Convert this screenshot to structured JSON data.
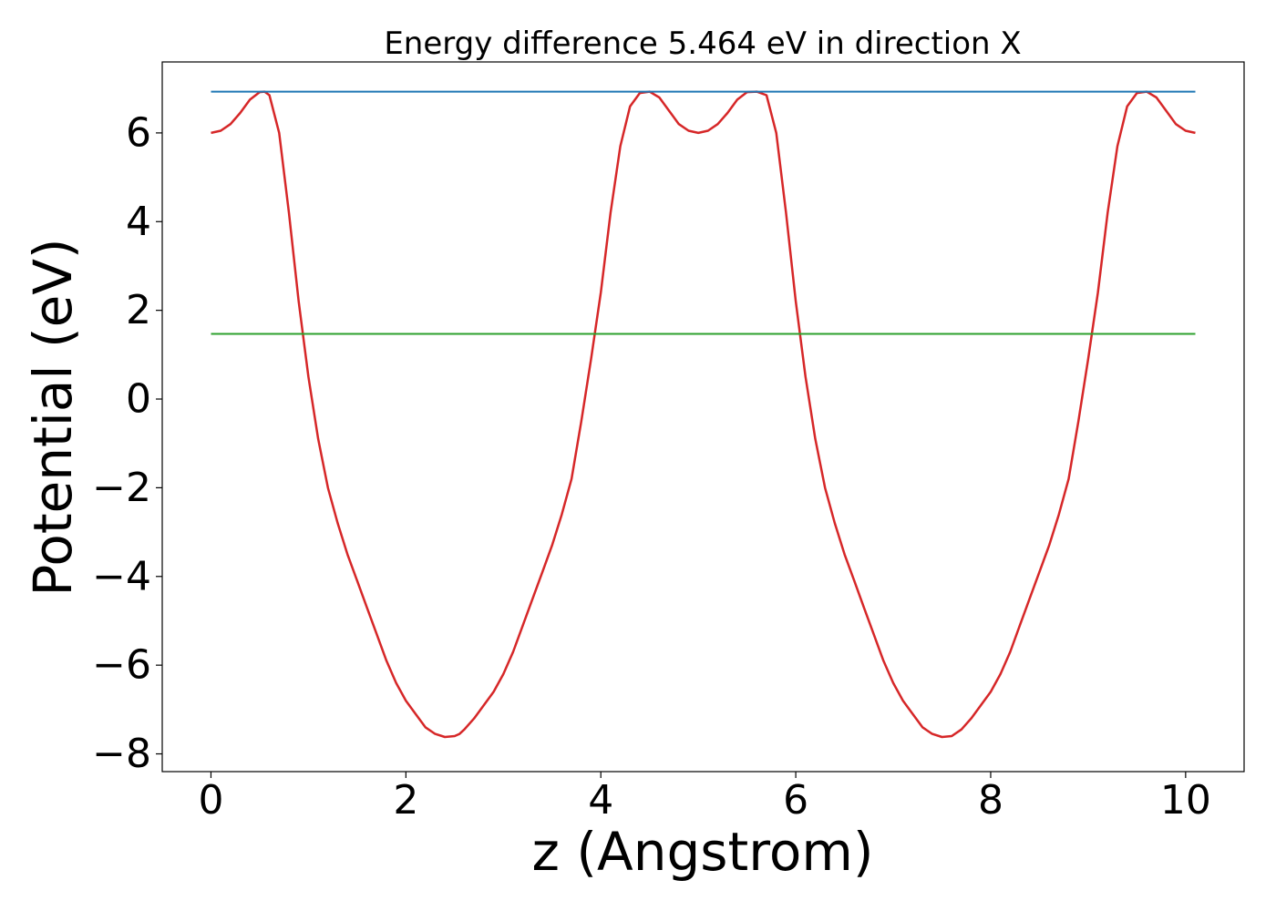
{
  "chart_data": {
    "type": "line",
    "title": "Energy difference 5.464 eV in direction X",
    "xlabel": "z (Angstrom)",
    "ylabel": "Potential (eV)",
    "xlim": [
      -0.5,
      10.6
    ],
    "ylim": [
      -8.4,
      7.6
    ],
    "xticks": [
      0,
      2,
      4,
      6,
      8,
      10
    ],
    "yticks": [
      -8,
      -6,
      -4,
      -2,
      0,
      2,
      4,
      6
    ],
    "xtick_labels": [
      "0",
      "2",
      "4",
      "6",
      "8",
      "10"
    ],
    "ytick_labels": [
      "−8",
      "−6",
      "−4",
      "−2",
      "0",
      "2",
      "4",
      "6"
    ],
    "grid": false,
    "legend": "none",
    "series": [
      {
        "color": "#d62728",
        "x": [
          0,
          0.1,
          0.2,
          0.3,
          0.4,
          0.5,
          0.55,
          0.6,
          0.7,
          0.8,
          0.9,
          1.0,
          1.1,
          1.2,
          1.3,
          1.4,
          1.5,
          1.6,
          1.7,
          1.8,
          1.9,
          2.0,
          2.1,
          2.2,
          2.3,
          2.4,
          2.5,
          2.55,
          2.6,
          2.7,
          2.8,
          2.9,
          3.0,
          3.1,
          3.2,
          3.3,
          3.4,
          3.5,
          3.6,
          3.7,
          3.8,
          3.9,
          4.0,
          4.1,
          4.2,
          4.3,
          4.4,
          4.5,
          4.6,
          4.7,
          4.8,
          4.9,
          5.0,
          5.1,
          5.2,
          5.3,
          5.4,
          5.5,
          5.6,
          5.7,
          5.8,
          5.9,
          6.0,
          6.1,
          6.2,
          6.3,
          6.4,
          6.5,
          6.6,
          6.7,
          6.8,
          6.9,
          7.0,
          7.1,
          7.2,
          7.3,
          7.4,
          7.5,
          7.6,
          7.7,
          7.8,
          7.9,
          8.0,
          8.1,
          8.2,
          8.3,
          8.4,
          8.5,
          8.6,
          8.7,
          8.8,
          8.9,
          9.0,
          9.1,
          9.2,
          9.3,
          9.4,
          9.5,
          9.6,
          9.7,
          9.8,
          9.9,
          10.0,
          10.1
        ],
        "y": [
          6.0,
          6.05,
          6.2,
          6.45,
          6.75,
          6.92,
          6.93,
          6.85,
          6.0,
          4.2,
          2.2,
          0.5,
          -0.9,
          -2.0,
          -2.8,
          -3.5,
          -4.1,
          -4.7,
          -5.3,
          -5.9,
          -6.4,
          -6.8,
          -7.1,
          -7.4,
          -7.55,
          -7.62,
          -7.6,
          -7.55,
          -7.45,
          -7.2,
          -6.9,
          -6.6,
          -6.2,
          -5.7,
          -5.1,
          -4.5,
          -3.9,
          -3.3,
          -2.6,
          -1.8,
          -0.5,
          0.9,
          2.4,
          4.2,
          5.7,
          6.6,
          6.9,
          6.93,
          6.8,
          6.5,
          6.2,
          6.05,
          6.0,
          6.05,
          6.2,
          6.45,
          6.75,
          6.92,
          6.93,
          6.85,
          6.0,
          4.2,
          2.2,
          0.5,
          -0.9,
          -2.0,
          -2.8,
          -3.5,
          -4.1,
          -4.7,
          -5.3,
          -5.9,
          -6.4,
          -6.8,
          -7.1,
          -7.4,
          -7.55,
          -7.62,
          -7.6,
          -7.45,
          -7.2,
          -6.9,
          -6.6,
          -6.2,
          -5.7,
          -5.1,
          -4.5,
          -3.9,
          -3.3,
          -2.6,
          -1.8,
          -0.5,
          0.9,
          2.4,
          4.2,
          5.7,
          6.6,
          6.9,
          6.93,
          6.8,
          6.5,
          6.2,
          6.05,
          6.0
        ]
      },
      {
        "color": "#1f77b4",
        "x": [
          0,
          10.1
        ],
        "y": [
          6.93,
          6.93
        ]
      },
      {
        "color": "#2ca02c",
        "x": [
          0,
          10.1
        ],
        "y": [
          1.47,
          1.47
        ]
      }
    ]
  }
}
